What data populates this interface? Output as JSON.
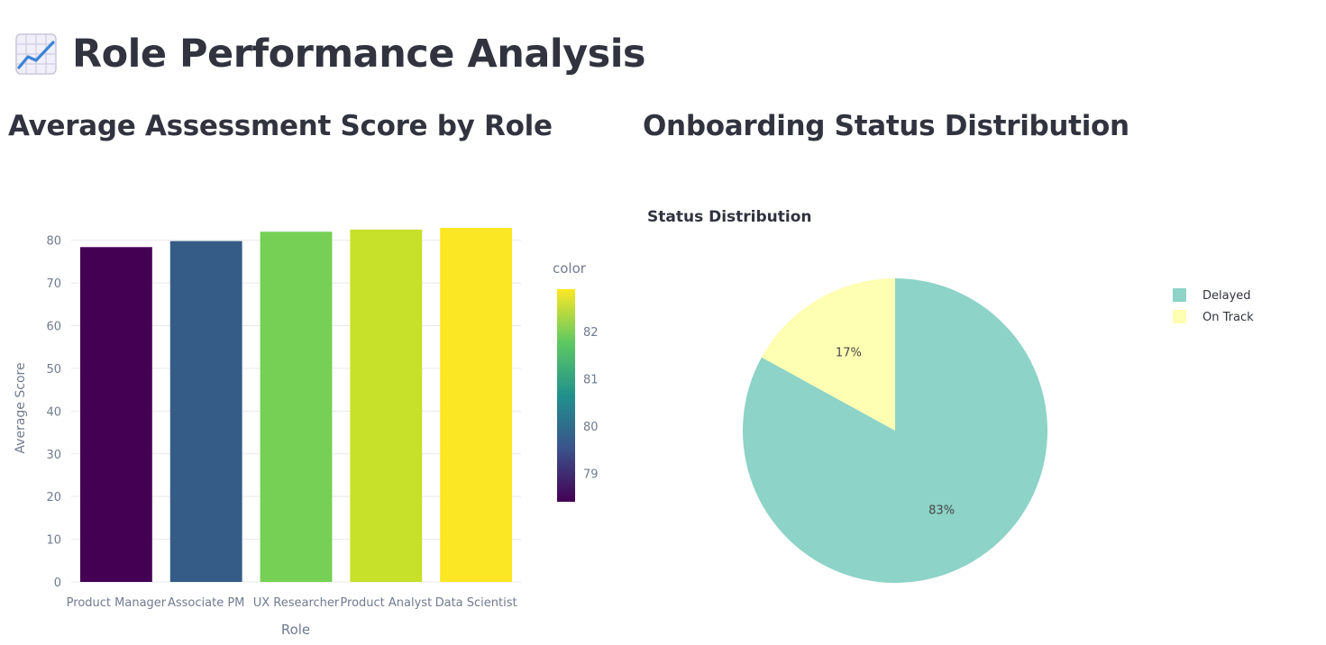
{
  "page": {
    "title": "Role Performance Analysis",
    "title_icon": "chart-increasing-icon"
  },
  "sections": {
    "bar_heading": "Average Assessment Score by Role",
    "pie_heading": "Onboarding Status Distribution"
  },
  "colors": {
    "text": "#31333f",
    "axis_text": "#707b8f",
    "grid": "#e8e8e8",
    "viridis": [
      "#440154",
      "#3b528b",
      "#21918c",
      "#5ec962",
      "#fde725"
    ]
  },
  "chart_data": [
    {
      "type": "bar",
      "categories": [
        "Product Manager",
        "Associate PM",
        "UX Researcher",
        "Product Analyst",
        "Data Scientist"
      ],
      "values": [
        78.4,
        79.8,
        82.0,
        82.5,
        82.9
      ],
      "bar_colors": [
        "#440154",
        "#355c87",
        "#76d055",
        "#c7e02a",
        "#fbe723"
      ],
      "xlabel": "Role",
      "ylabel": "Average Score",
      "ylim": [
        0,
        85
      ],
      "yticks": [
        0,
        10,
        20,
        30,
        40,
        50,
        60,
        70,
        80
      ],
      "grid": true,
      "colorbar": {
        "title": "color",
        "range": [
          78.4,
          82.9
        ],
        "ticks": [
          79,
          80,
          81,
          82
        ],
        "colorscale": "Viridis"
      }
    },
    {
      "type": "pie",
      "title": "Status Distribution",
      "labels": [
        "Delayed",
        "On Track"
      ],
      "values": [
        83,
        17
      ],
      "value_labels": [
        "83%",
        "17%"
      ],
      "colors": [
        "#8dd3c7",
        "#ffffb3"
      ],
      "legend_position": "top-right"
    }
  ]
}
